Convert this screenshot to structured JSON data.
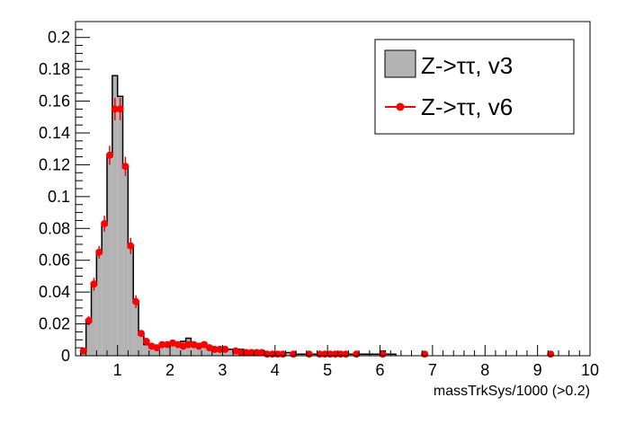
{
  "chart_data": {
    "type": "histogram",
    "xlabel": "massTrkSys/1000 (>0.2)",
    "ylabel": "",
    "xlim": [
      0.2,
      10
    ],
    "ylim": [
      0,
      0.21
    ],
    "x_ticks": [
      "1",
      "2",
      "3",
      "4",
      "5",
      "6",
      "7",
      "8",
      "9",
      "10"
    ],
    "y_ticks": [
      "0",
      "0.02",
      "0.04",
      "0.06",
      "0.08",
      "0.1",
      "0.12",
      "0.14",
      "0.16",
      "0.18",
      "0.2"
    ],
    "grid": false,
    "legend_position": "top-right",
    "legend": [
      {
        "label": "Z->ττ, v3",
        "style": "filled-histogram"
      },
      {
        "label": "Z->ττ, v6",
        "style": "markers-with-errors"
      }
    ],
    "colors": {
      "histogram_fill": "#b3b3b3",
      "histogram_line": "#000000",
      "marker": "#ff0000"
    },
    "bin_width": 0.1,
    "series": [
      {
        "name": "Z->ττ, v3",
        "bin_centers": [
          0.35,
          0.45,
          0.55,
          0.65,
          0.75,
          0.85,
          0.95,
          1.05,
          1.15,
          1.25,
          1.35,
          1.45,
          1.55,
          1.65,
          1.75,
          1.85,
          1.95,
          2.05,
          2.15,
          2.25,
          2.35,
          2.45,
          2.55,
          2.65,
          2.75,
          2.85,
          2.95,
          3.05,
          3.15,
          3.25,
          3.35,
          3.45,
          3.55,
          3.65,
          3.75,
          3.85,
          3.95,
          4.05,
          4.15,
          4.25,
          4.35,
          4.45,
          4.55,
          4.65,
          4.75,
          4.85,
          4.95,
          5.05,
          5.15,
          5.25,
          5.35,
          5.45,
          5.55,
          5.65,
          5.75,
          5.85,
          5.95,
          6.05,
          6.15,
          6.25
        ],
        "values": [
          0.003,
          0.021,
          0.046,
          0.066,
          0.082,
          0.125,
          0.176,
          0.163,
          0.118,
          0.068,
          0.034,
          0.013,
          0.007,
          0.005,
          0.006,
          0.008,
          0.006,
          0.007,
          0.007,
          0.009,
          0.011,
          0.008,
          0.007,
          0.008,
          0.006,
          0.005,
          0.005,
          0.004,
          0.004,
          0.003,
          0.004,
          0.003,
          0.003,
          0.002,
          0.003,
          0.002,
          0.002,
          0.002,
          0.002,
          0.002,
          0.001,
          0.001,
          0.001,
          0.001,
          0.001,
          0.001,
          0.001,
          0.001,
          0.001,
          0.001,
          0.001,
          0.001,
          0.001,
          0.001,
          0.001,
          0.001,
          0.001,
          0.003,
          0.001,
          0.001
        ]
      },
      {
        "name": "Z->ττ, v6",
        "x": [
          0.35,
          0.45,
          0.55,
          0.65,
          0.75,
          0.85,
          0.95,
          1.05,
          1.15,
          1.25,
          1.35,
          1.45,
          1.55,
          1.65,
          1.75,
          1.85,
          1.95,
          2.05,
          2.15,
          2.25,
          2.35,
          2.45,
          2.55,
          2.65,
          2.75,
          2.85,
          2.95,
          3.05,
          3.25,
          3.35,
          3.45,
          3.55,
          3.65,
          3.75,
          3.85,
          3.95,
          4.05,
          4.15,
          4.35,
          4.65,
          4.85,
          4.95,
          5.05,
          5.15,
          5.25,
          5.35,
          5.55,
          6.05,
          6.85,
          9.25
        ],
        "y": [
          0.003,
          0.022,
          0.045,
          0.065,
          0.083,
          0.126,
          0.155,
          0.155,
          0.119,
          0.069,
          0.034,
          0.014,
          0.009,
          0.006,
          0.005,
          0.007,
          0.007,
          0.008,
          0.007,
          0.006,
          0.007,
          0.007,
          0.006,
          0.007,
          0.005,
          0.004,
          0.004,
          0.004,
          0.003,
          0.002,
          0.002,
          0.002,
          0.002,
          0.002,
          0.001,
          0.001,
          0.001,
          0.001,
          0.001,
          0.001,
          0.001,
          0.001,
          0.001,
          0.001,
          0.001,
          0.001,
          0.001,
          0.001,
          0.001,
          0.001
        ],
        "err": [
          0.002,
          0.003,
          0.004,
          0.004,
          0.005,
          0.006,
          0.007,
          0.007,
          0.006,
          0.005,
          0.004,
          0.002,
          0.002,
          0.001,
          0.001,
          0.001,
          0.001,
          0.001,
          0.001,
          0.001,
          0.001,
          0.001,
          0.001,
          0.001,
          0.001,
          0.001,
          0.001,
          0.001,
          0.001,
          0.001,
          0.001,
          0.001,
          0.001,
          0.001,
          0.001,
          0.001,
          0.001,
          0.001,
          0.001,
          0.001,
          0.001,
          0.001,
          0.001,
          0.001,
          0.001,
          0.001,
          0.001,
          0.001,
          0.001,
          0.001
        ]
      }
    ]
  }
}
